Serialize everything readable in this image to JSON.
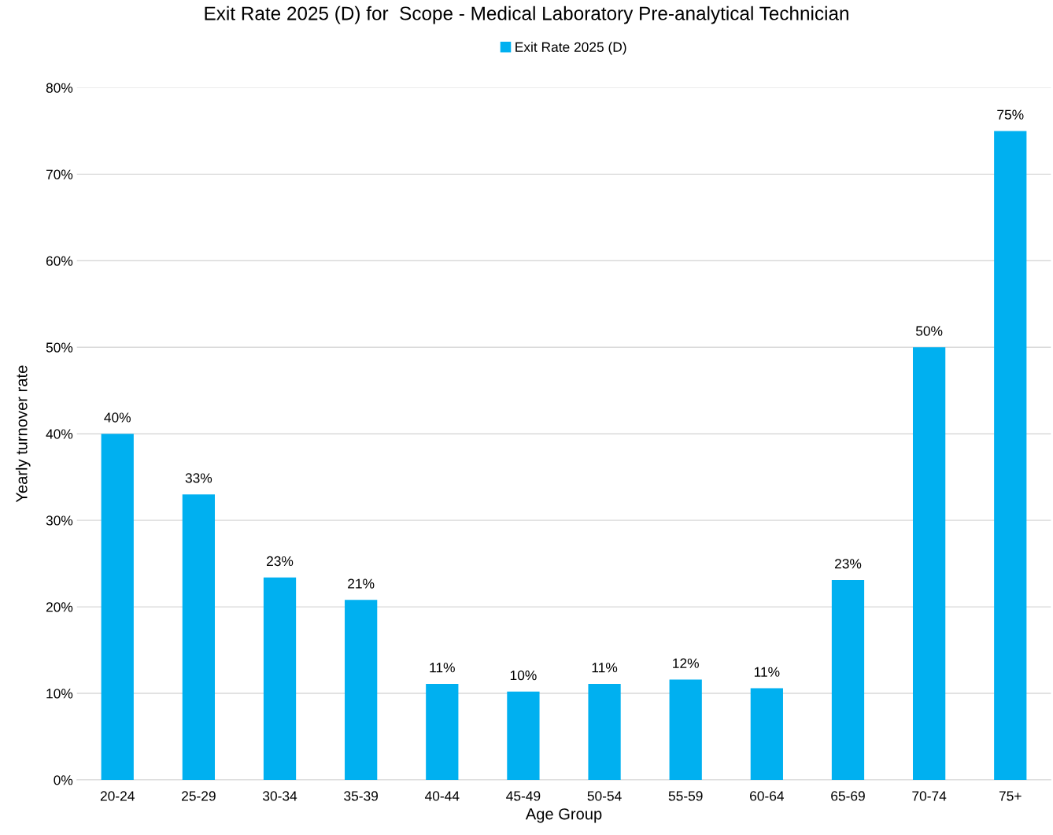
{
  "chart_data": {
    "type": "bar",
    "title": "Exit Rate 2025 (D) for  Scope - Medical Laboratory Pre-analytical Technician",
    "xlabel": "Age Group",
    "ylabel": "Yearly turnover rate",
    "categories": [
      "20-24",
      "25-29",
      "30-34",
      "35-39",
      "40-44",
      "45-49",
      "50-54",
      "55-59",
      "60-64",
      "65-69",
      "70-74",
      "75+"
    ],
    "series": [
      {
        "name": "Exit Rate 2025 (D)",
        "color": "#00b0f0",
        "values": [
          40,
          33,
          23.4,
          20.8,
          11.1,
          10.2,
          11.1,
          11.6,
          10.6,
          23.1,
          50,
          75
        ],
        "value_labels": [
          "40%",
          "33%",
          "23%",
          "21%",
          "11%",
          "10%",
          "11%",
          "12%",
          "11%",
          "23%",
          "50%",
          "75%"
        ]
      }
    ],
    "ylim": [
      0,
      80
    ],
    "yticks": [
      {
        "value": 0,
        "label": "0%"
      },
      {
        "value": 10,
        "label": "10%"
      },
      {
        "value": 20,
        "label": "20%"
      },
      {
        "value": 30,
        "label": "30%"
      },
      {
        "value": 40,
        "label": "40%"
      },
      {
        "value": 50,
        "label": "50%"
      },
      {
        "value": 60,
        "label": "60%"
      },
      {
        "value": 70,
        "label": "70%"
      },
      {
        "value": 80,
        "label": "80%"
      }
    ],
    "grid": "y",
    "legend": "top"
  }
}
